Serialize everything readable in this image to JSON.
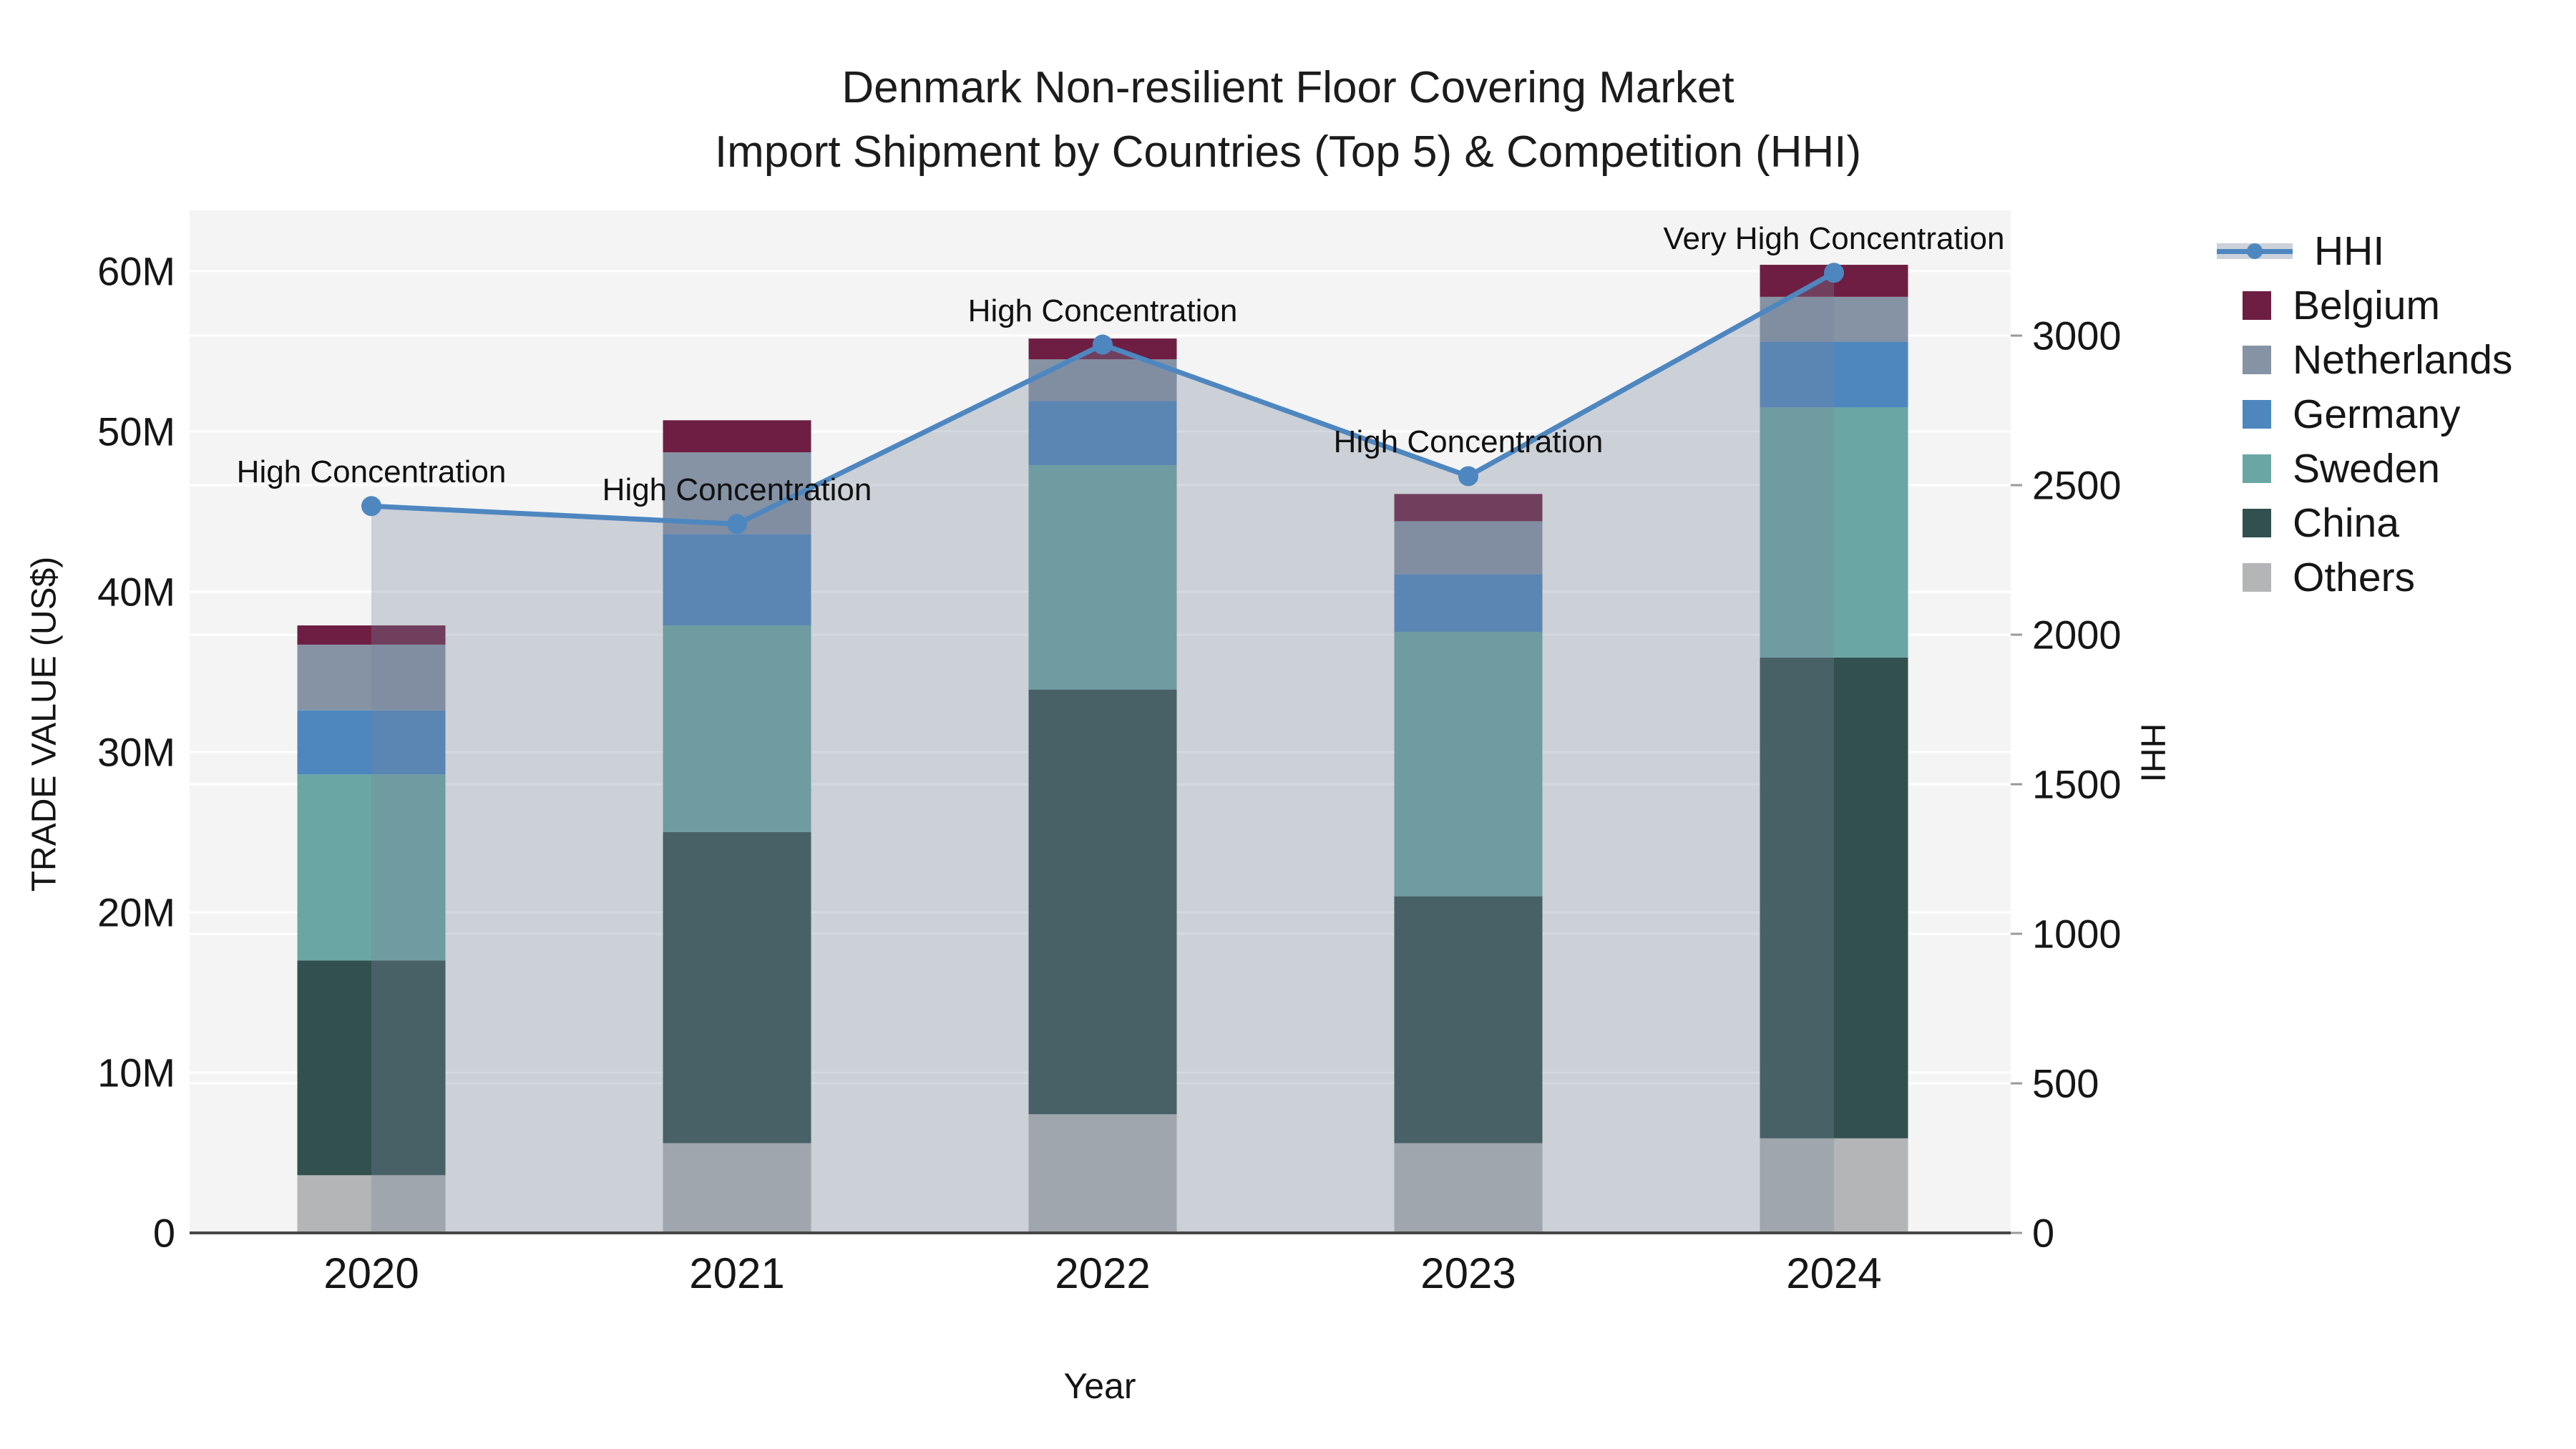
{
  "title": {
    "line1": "Denmark Non-resilient Floor Covering Market",
    "line2": "Import Shipment by Countries (Top 5) & Competition (HHI)"
  },
  "axes": {
    "y_left": {
      "title": "TRADE VALUE (US$)",
      "tick_labels": [
        "0",
        "10M",
        "20M",
        "30M",
        "40M",
        "50M",
        "60M"
      ],
      "tick_values_millions": [
        0,
        10,
        20,
        30,
        40,
        50,
        60
      ]
    },
    "y_right": {
      "title": "HHI",
      "tick_labels": [
        "0",
        "500",
        "1000",
        "1500",
        "2000",
        "2500",
        "3000"
      ],
      "tick_values": [
        0,
        500,
        1000,
        1500,
        2000,
        2500,
        3000
      ]
    },
    "x": {
      "title": "Year"
    }
  },
  "legend": {
    "items": [
      {
        "label": "HHI",
        "type": "line",
        "color": "#4e87c0"
      },
      {
        "label": "Belgium",
        "type": "square",
        "color": "#6e1e42"
      },
      {
        "label": "Netherlands",
        "type": "square",
        "color": "#8593a5"
      },
      {
        "label": "Germany",
        "type": "square",
        "color": "#4d87be"
      },
      {
        "label": "Sweden",
        "type": "square",
        "color": "#6aa7a4"
      },
      {
        "label": "China",
        "type": "square",
        "color": "#31504e"
      },
      {
        "label": "Others",
        "type": "square",
        "color": "#b3b5b6"
      }
    ]
  },
  "chart_data": {
    "type": "bar",
    "subtype": "stacked-bars-with-secondary-line",
    "title": "Denmark Non-resilient Floor Covering Market Import Shipment by Countries (Top 5) & Competition (HHI)",
    "categories": [
      "2020",
      "2021",
      "2022",
      "2023",
      "2024"
    ],
    "xlabel": "Year",
    "ylabel_left": "TRADE VALUE (US$)",
    "ylabel_right": "HHI",
    "ylim_left_millions": [
      0,
      63.5
    ],
    "ylim_right": [
      0,
      3420
    ],
    "grid": true,
    "legend_position": "right",
    "value_unit": "millions US$",
    "series": [
      {
        "name": "Others",
        "color": "#b3b5b6",
        "values": [
          3.6,
          5.6,
          7.4,
          5.6,
          5.9
        ]
      },
      {
        "name": "China",
        "color": "#31504e",
        "values": [
          13.4,
          19.4,
          26.5,
          15.4,
          30.0
        ]
      },
      {
        "name": "Sweden",
        "color": "#6aa7a4",
        "values": [
          11.6,
          12.9,
          14.0,
          16.5,
          15.6
        ]
      },
      {
        "name": "Germany",
        "color": "#4d87be",
        "values": [
          4.0,
          5.7,
          4.0,
          3.6,
          4.1
        ]
      },
      {
        "name": "Netherlands",
        "color": "#8593a5",
        "values": [
          4.1,
          5.1,
          2.6,
          3.3,
          2.8
        ]
      },
      {
        "name": "Belgium",
        "color": "#6e1e42",
        "values": [
          1.2,
          2.0,
          1.3,
          1.7,
          2.0
        ]
      }
    ],
    "stack_totals_millions": [
      37.9,
      50.7,
      55.8,
      46.1,
      60.4
    ],
    "hhi_line": {
      "name": "HHI",
      "color": "#4e87c0",
      "area_fill_rgba": "rgba(120,135,155,0.32)",
      "values": [
        2430,
        2370,
        2970,
        2530,
        3210
      ]
    },
    "annotations": [
      {
        "category": "2020",
        "text": "High Concentration"
      },
      {
        "category": "2021",
        "text": "High Concentration"
      },
      {
        "category": "2022",
        "text": "High Concentration"
      },
      {
        "category": "2023",
        "text": "High Concentration"
      },
      {
        "category": "2024",
        "text": "Very High Concentration"
      }
    ],
    "colors": {
      "plot_background": "#f4f4f4",
      "gridline": "#ffffff",
      "axis_line": "#474747",
      "text": "#161616"
    }
  }
}
